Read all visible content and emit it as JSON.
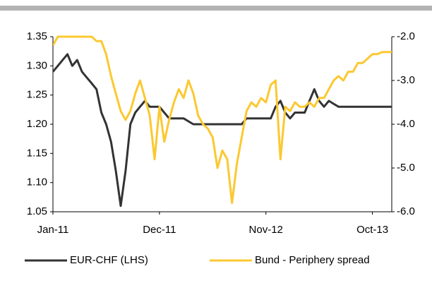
{
  "chart_data": {
    "type": "line",
    "categories": [
      "Jan-11",
      null,
      null,
      null,
      null,
      null,
      null,
      null,
      null,
      null,
      null,
      null,
      null,
      null,
      null,
      null,
      null,
      null,
      null,
      null,
      null,
      null,
      "Dec-11",
      null,
      null,
      null,
      null,
      null,
      null,
      null,
      null,
      null,
      null,
      null,
      null,
      null,
      null,
      null,
      null,
      null,
      null,
      null,
      null,
      null,
      "Nov-12",
      null,
      null,
      null,
      null,
      null,
      null,
      null,
      null,
      null,
      null,
      null,
      null,
      null,
      null,
      null,
      null,
      null,
      null,
      null,
      null,
      null,
      "Oct-13",
      null,
      null,
      null,
      null
    ],
    "series": [
      {
        "name": "EUR-CHF (LHS)",
        "color": "#333333",
        "axis": "y",
        "values": [
          1.29,
          1.3,
          1.31,
          1.32,
          1.3,
          1.31,
          1.29,
          1.28,
          1.27,
          1.26,
          1.22,
          1.2,
          1.17,
          1.12,
          1.06,
          1.12,
          1.2,
          1.22,
          1.23,
          1.24,
          1.23,
          1.23,
          1.23,
          1.22,
          1.21,
          1.21,
          1.21,
          1.21,
          1.205,
          1.2,
          1.2,
          1.2,
          1.2,
          1.2,
          1.2,
          1.2,
          1.2,
          1.2,
          1.2,
          1.2,
          1.21,
          1.21,
          1.21,
          1.21,
          1.21,
          1.21,
          1.23,
          1.24,
          1.22,
          1.21,
          1.22,
          1.22,
          1.22,
          1.24,
          1.26,
          1.24,
          1.23,
          1.24,
          1.235,
          1.23,
          1.23,
          1.23,
          1.23,
          1.23,
          1.23,
          1.23,
          1.23,
          1.23,
          1.23,
          1.23,
          1.23
        ]
      },
      {
        "name": "Bund - Periphery spread",
        "color": "#fcc830",
        "axis": "y2",
        "values": [
          -2.2,
          -2.0,
          -2.0,
          -2.0,
          -2.0,
          -2.0,
          -2.0,
          -2.0,
          -2.0,
          -2.1,
          -2.1,
          -2.4,
          -2.9,
          -3.3,
          -3.7,
          -3.9,
          -3.7,
          -3.3,
          -3.0,
          -3.4,
          -3.8,
          -4.8,
          -3.6,
          -4.4,
          -3.9,
          -3.5,
          -3.2,
          -3.4,
          -3.0,
          -3.3,
          -3.8,
          -4.0,
          -4.1,
          -4.3,
          -5.0,
          -4.6,
          -4.8,
          -5.8,
          -4.9,
          -4.3,
          -3.7,
          -3.5,
          -3.6,
          -3.4,
          -3.5,
          -3.1,
          -3.0,
          -4.8,
          -3.6,
          -3.7,
          -3.5,
          -3.6,
          -3.6,
          -3.5,
          -3.6,
          -3.4,
          -3.4,
          -3.2,
          -3.0,
          -2.9,
          -3.0,
          -2.8,
          -2.8,
          -2.6,
          -2.6,
          -2.5,
          -2.4,
          -2.4,
          -2.35,
          -2.35,
          -2.35
        ]
      }
    ],
    "ylim": [
      1.05,
      1.35
    ],
    "yticks": [
      1.35,
      {
        "value": 1.3,
        "label": "1.30"
      },
      1.25,
      {
        "value": 1.2,
        "label": "1.20"
      },
      1.15,
      {
        "value": 1.1,
        "label": "1.10"
      },
      1.05
    ],
    "y2lim": [
      -6.0,
      -2.0
    ],
    "y2ticks": [
      {
        "value": -2,
        "label": "-2.0"
      },
      {
        "value": -3,
        "label": "-3.0"
      },
      {
        "value": -4,
        "label": "-4.0"
      },
      {
        "value": -5,
        "label": "-5.0"
      },
      {
        "value": -6,
        "label": "-6.0"
      }
    ],
    "grid": false
  }
}
